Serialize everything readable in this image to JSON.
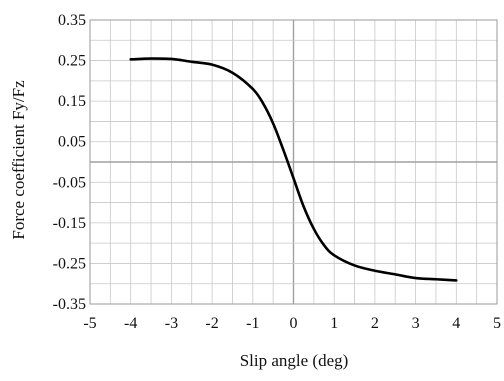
{
  "chart_data": {
    "type": "line",
    "title": "",
    "xlabel": "Slip angle (deg)",
    "ylabel": "Force coefficient Fy/Fz",
    "xlim": [
      -5,
      5
    ],
    "ylim": [
      -0.35,
      0.35
    ],
    "xticks": [
      "-5",
      "-4",
      "-3",
      "-2",
      "-1",
      "0",
      "1",
      "2",
      "3",
      "4",
      "5"
    ],
    "yticks": [
      "0.35",
      "0.25",
      "0.15",
      "0.05",
      "-0.05",
      "-0.15",
      "-0.25",
      "-0.35"
    ],
    "grid": true,
    "legend": "none",
    "series": [
      {
        "color": "#000000",
        "x": [
          -4,
          -3.5,
          -3,
          -2.5,
          -2,
          -1.5,
          -1,
          -0.75,
          -0.5,
          -0.25,
          0,
          0.25,
          0.5,
          0.75,
          1,
          1.5,
          2,
          2.5,
          3,
          3.5,
          4
        ],
        "y": [
          0.253,
          0.255,
          0.254,
          0.247,
          0.24,
          0.22,
          0.18,
          0.145,
          0.095,
          0.03,
          -0.04,
          -0.11,
          -0.165,
          -0.205,
          -0.23,
          -0.255,
          -0.268,
          -0.277,
          -0.286,
          -0.289,
          -0.292
        ]
      }
    ],
    "colors": {
      "gridline": "#c8c8c8",
      "frame": "#9a9a9a",
      "zeroline": "#a0a0a0",
      "line": "#000000",
      "text": "#111111"
    }
  }
}
